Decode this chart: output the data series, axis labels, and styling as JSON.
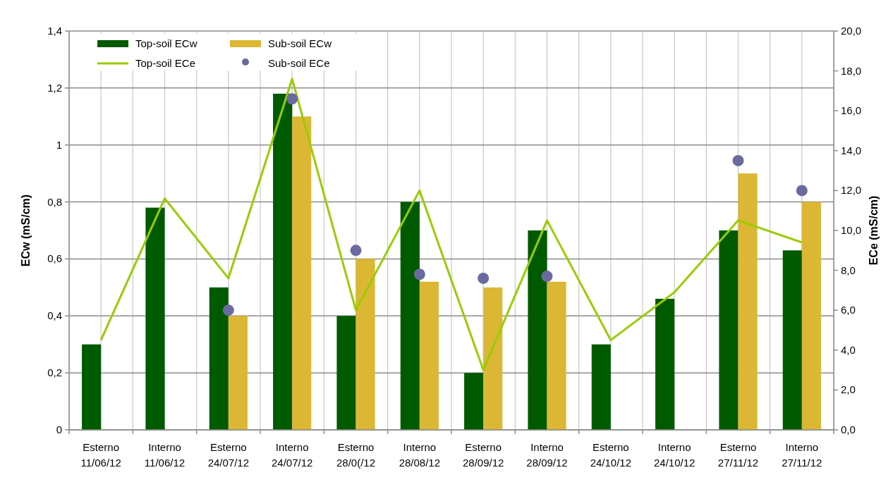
{
  "chart_data": {
    "type": "bar",
    "categories": [
      "Esterno\n11/06/12",
      "Interno\n11/06/12",
      "Esterno\n24/07/12",
      "Interno\n24/07/12",
      "Esterno\n28/0(/12",
      "Interno\n28/08/12",
      "Esterno\n28/09/12",
      "Interno\n28/09/12",
      "Esterno\n24/10/12",
      "Interno\n24/10/12",
      "Esterno\n27/11/12",
      "Interno\n27/11/12"
    ],
    "series": [
      {
        "name": "Top-soil ECw",
        "color": "#005a00",
        "values": [
          0.3,
          0.78,
          0.5,
          1.18,
          0.4,
          0.8,
          0.2,
          0.7,
          0.3,
          0.46,
          0.7,
          0.63
        ]
      },
      {
        "name": "Sub-soil ECw",
        "color": "#dbb734",
        "values": [
          null,
          null,
          0.4,
          1.1,
          0.6,
          0.52,
          0.5,
          0.52,
          null,
          null,
          0.9,
          0.8
        ]
      },
      {
        "name": "Top-soil ECe",
        "type": "line",
        "axis": "y2",
        "color": "#99cc00",
        "values": [
          4.5,
          11.6,
          7.6,
          17.6,
          6.0,
          12.0,
          3.0,
          10.5,
          4.5,
          6.9,
          10.5,
          9.4
        ]
      },
      {
        "name": "Sub-soil ECe",
        "type": "scatter",
        "axis": "y2",
        "color": "#6a6a9e",
        "marker": "circle",
        "values": [
          null,
          null,
          6.0,
          16.6,
          9.0,
          7.8,
          7.6,
          7.7,
          null,
          null,
          13.5,
          12.0
        ]
      }
    ],
    "ylabel": "ECw (mS/cm)",
    "y2label": "ECe (mS/cm)",
    "ylim": [
      0,
      1.4
    ],
    "yticks": [
      0,
      {
        "value": 0.2,
        "label": "0,2"
      },
      {
        "value": 0.4,
        "label": "0,4"
      },
      {
        "value": 0.6,
        "label": "0,6"
      },
      {
        "value": 0.8,
        "label": "0,8"
      },
      1,
      {
        "value": 1.2,
        "label": "1,2"
      },
      {
        "value": 1.4,
        "label": "1,4"
      }
    ],
    "y2lim": [
      0,
      20
    ],
    "y2ticks": [
      {
        "value": 0,
        "label": "0,0"
      },
      {
        "value": 2,
        "label": "2,0"
      },
      {
        "value": 4,
        "label": "4,0"
      },
      {
        "value": 6,
        "label": "6,0"
      },
      {
        "value": 8,
        "label": "8,0"
      },
      {
        "value": 10,
        "label": "10,0"
      },
      {
        "value": 12,
        "label": "12,0"
      },
      {
        "value": 14,
        "label": "14,0"
      },
      {
        "value": 16,
        "label": "16,0"
      },
      {
        "value": 18,
        "label": "18,0"
      },
      {
        "value": 20,
        "label": "20,0"
      }
    ],
    "grid": true,
    "legend": "top left"
  }
}
